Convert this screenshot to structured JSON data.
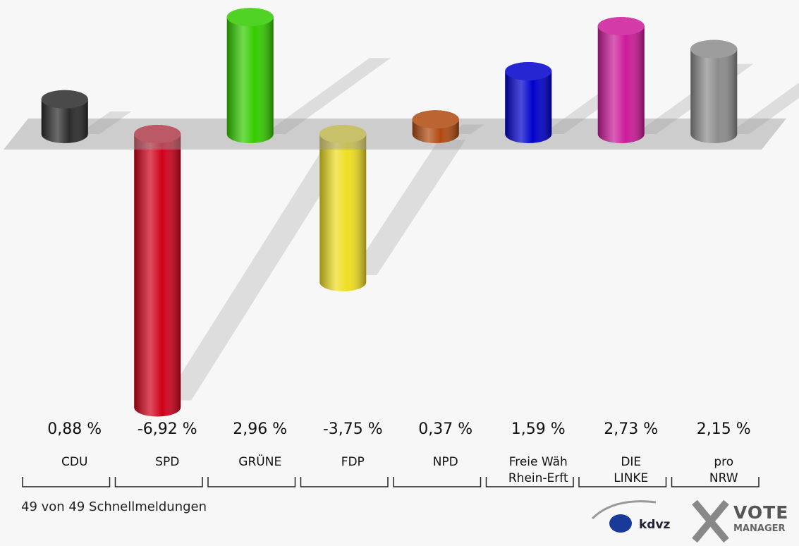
{
  "chart_data": {
    "type": "bar",
    "categories": [
      "CDU",
      "SPD",
      "GRÜNE",
      "FDP",
      "NPD",
      "Freie Wäh\nRhein-Erft",
      "DIE\nLINKE",
      "pro\nNRW"
    ],
    "values": [
      0.88,
      -6.92,
      2.96,
      -3.75,
      0.37,
      1.59,
      2.73,
      2.15
    ],
    "value_labels": [
      "0,88 %",
      "-6,92 %",
      "2,96 %",
      "-3,75 %",
      "0,37 %",
      "1,59 %",
      "2,73 %",
      "2,15 %"
    ],
    "colors": [
      "#2b2b2b",
      "#d0001a",
      "#33cc00",
      "#eedd22",
      "#b04a10",
      "#0000cc",
      "#cc1a99",
      "#8c8c8c"
    ],
    "footer": "49 von 49 Schnellmeldungen",
    "logo": {
      "kdvz": "kdvz",
      "vote": "VOTE",
      "manager": "MANAGER"
    }
  }
}
